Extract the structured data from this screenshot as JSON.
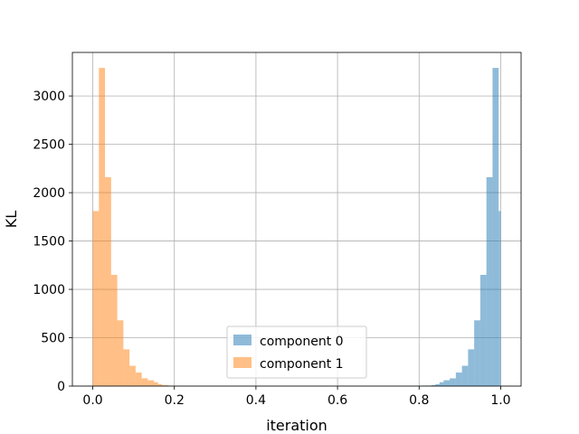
{
  "chart_data": {
    "type": "bar",
    "title": "",
    "xlabel": "iteration",
    "ylabel": "KL",
    "xlim": [
      -0.05,
      1.05
    ],
    "ylim": [
      0,
      3450
    ],
    "xticks": [
      0.0,
      0.2,
      0.4,
      0.6,
      0.8,
      1.0
    ],
    "xtick_labels": [
      "0.0",
      "0.2",
      "0.4",
      "0.6",
      "0.8",
      "1.0"
    ],
    "yticks": [
      0,
      500,
      1000,
      1500,
      2000,
      2500,
      3000
    ],
    "ytick_labels": [
      "0",
      "500",
      "1000",
      "1500",
      "2000",
      "2500",
      "3000"
    ],
    "grid": true,
    "legend_position": "bottom-center",
    "series": [
      {
        "name": "component 0",
        "color": "#1f77b4",
        "alpha": 0.5,
        "bins": [
          {
            "x0": 0.81,
            "x1": 0.83,
            "count": 5
          },
          {
            "x0": 0.83,
            "x1": 0.84,
            "count": 10
          },
          {
            "x0": 0.84,
            "x1": 0.85,
            "count": 20
          },
          {
            "x0": 0.85,
            "x1": 0.86,
            "count": 40
          },
          {
            "x0": 0.86,
            "x1": 0.875,
            "count": 60
          },
          {
            "x0": 0.875,
            "x1": 0.89,
            "count": 80
          },
          {
            "x0": 0.89,
            "x1": 0.905,
            "count": 140
          },
          {
            "x0": 0.905,
            "x1": 0.92,
            "count": 210
          },
          {
            "x0": 0.92,
            "x1": 0.935,
            "count": 380
          },
          {
            "x0": 0.935,
            "x1": 0.95,
            "count": 680
          },
          {
            "x0": 0.95,
            "x1": 0.965,
            "count": 1150
          },
          {
            "x0": 0.965,
            "x1": 0.98,
            "count": 2160
          },
          {
            "x0": 0.98,
            "x1": 0.995,
            "count": 3290
          },
          {
            "x0": 0.995,
            "x1": 1.0,
            "count": 1810
          }
        ]
      },
      {
        "name": "component 1",
        "color": "#ff7f0e",
        "alpha": 0.5,
        "bins": [
          {
            "x0": 0.0,
            "x1": 0.015,
            "count": 1810
          },
          {
            "x0": 0.015,
            "x1": 0.03,
            "count": 3290
          },
          {
            "x0": 0.03,
            "x1": 0.045,
            "count": 2160
          },
          {
            "x0": 0.045,
            "x1": 0.06,
            "count": 1150
          },
          {
            "x0": 0.06,
            "x1": 0.075,
            "count": 680
          },
          {
            "x0": 0.075,
            "x1": 0.09,
            "count": 380
          },
          {
            "x0": 0.09,
            "x1": 0.105,
            "count": 210
          },
          {
            "x0": 0.105,
            "x1": 0.12,
            "count": 140
          },
          {
            "x0": 0.12,
            "x1": 0.135,
            "count": 80
          },
          {
            "x0": 0.135,
            "x1": 0.15,
            "count": 60
          },
          {
            "x0": 0.15,
            "x1": 0.16,
            "count": 40
          },
          {
            "x0": 0.16,
            "x1": 0.17,
            "count": 20
          },
          {
            "x0": 0.17,
            "x1": 0.185,
            "count": 10
          },
          {
            "x0": 0.185,
            "x1": 0.2,
            "count": 5
          }
        ]
      }
    ]
  }
}
